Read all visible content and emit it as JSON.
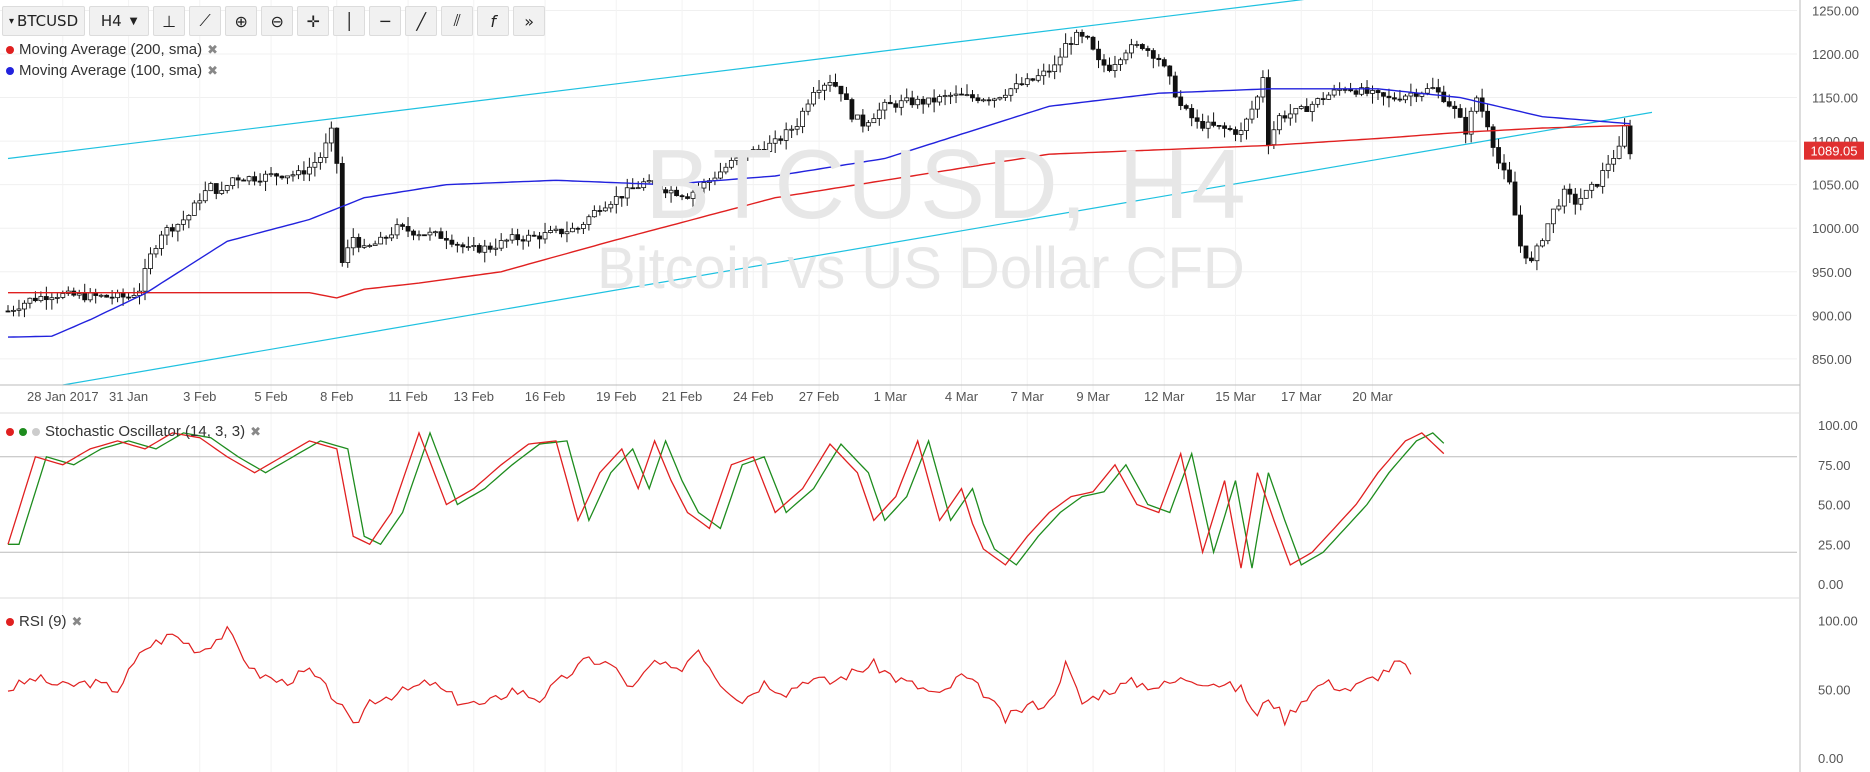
{
  "toolbar": {
    "symbol": "BTCUSD",
    "interval": "H4",
    "icons": [
      "bar-style-icon",
      "indicators-icon",
      "zoom-in-icon",
      "zoom-out-icon",
      "crosshair-icon",
      "vertical-line-icon",
      "horizontal-line-icon",
      "trend-line-icon",
      "pitchfork-icon",
      "function-icon",
      "more-icon"
    ]
  },
  "watermark": {
    "title": "BTCUSD, H4",
    "subtitle": "Bitcoin vs US Dollar CFD"
  },
  "legend": {
    "ma200": {
      "label": "Moving Average (200, sma)",
      "color": "#e02020"
    },
    "ma100": {
      "label": "Moving Average (100, sma)",
      "color": "#2222dd"
    },
    "stoch": {
      "label": "Stochastic Oscillator (14, 3, 3)",
      "k_color": "#e02020",
      "d_color": "#1e8c1e",
      "extra_dot": "#cccccc"
    },
    "rsi": {
      "label": "RSI (9)",
      "color": "#e02020"
    }
  },
  "chart_data": {
    "type": "candlestick",
    "title": "BTCUSD, H4",
    "subtitle": "Bitcoin vs US Dollar CFD",
    "last_price": "1089.05",
    "x_tick_labels": [
      "28 Jan 2017",
      "31 Jan",
      "3 Feb",
      "5 Feb",
      "8 Feb",
      "11 Feb",
      "13 Feb",
      "16 Feb",
      "19 Feb",
      "21 Feb",
      "24 Feb",
      "27 Feb",
      "1 Mar",
      "4 Mar",
      "7 Mar",
      "9 Mar",
      "12 Mar",
      "15 Mar",
      "17 Mar",
      "20 Mar"
    ],
    "price_axis": {
      "ticks": [
        "1250.00",
        "1200.00",
        "1150.00",
        "1100.00",
        "1050.00",
        "1000.00",
        "950.00",
        "900.00",
        "850.00"
      ],
      "ylim": [
        820,
        1262
      ]
    },
    "price_path": [
      [
        0,
        905
      ],
      [
        4,
        918
      ],
      [
        8,
        924
      ],
      [
        14,
        922
      ],
      [
        20,
        921
      ],
      [
        22,
        921
      ],
      [
        24,
        930
      ],
      [
        26,
        968
      ],
      [
        28,
        995
      ],
      [
        31,
        1005
      ],
      [
        33,
        1015
      ],
      [
        35,
        1035
      ],
      [
        37,
        1048
      ],
      [
        39,
        1040
      ],
      [
        41,
        1058
      ],
      [
        45,
        1058
      ],
      [
        50,
        1062
      ],
      [
        53,
        1062
      ],
      [
        55,
        1070
      ],
      [
        57,
        1082
      ],
      [
        58,
        1095
      ],
      [
        59,
        1110
      ],
      [
        60,
        1075
      ],
      [
        61,
        960
      ],
      [
        63,
        990
      ],
      [
        65,
        975
      ],
      [
        68,
        985
      ],
      [
        71,
        1000
      ],
      [
        75,
        995
      ],
      [
        80,
        990
      ],
      [
        84,
        975
      ],
      [
        88,
        978
      ],
      [
        92,
        988
      ],
      [
        96,
        990
      ],
      [
        100,
        995
      ],
      [
        104,
        1000
      ],
      [
        108,
        1025
      ],
      [
        112,
        1038
      ],
      [
        116,
        1052
      ],
      [
        120,
        1045
      ],
      [
        124,
        1038
      ],
      [
        128,
        1055
      ],
      [
        132,
        1075
      ],
      [
        136,
        1088
      ],
      [
        140,
        1098
      ],
      [
        144,
        1120
      ],
      [
        147,
        1160
      ],
      [
        150,
        1170
      ],
      [
        152,
        1158
      ],
      [
        154,
        1130
      ],
      [
        156,
        1120
      ],
      [
        160,
        1140
      ],
      [
        164,
        1145
      ],
      [
        168,
        1145
      ],
      [
        172,
        1152
      ],
      [
        176,
        1150
      ],
      [
        180,
        1150
      ],
      [
        183,
        1160
      ],
      [
        187,
        1170
      ],
      [
        191,
        1185
      ],
      [
        193,
        1210
      ],
      [
        195,
        1220
      ],
      [
        197,
        1215
      ],
      [
        199,
        1190
      ],
      [
        201,
        1185
      ],
      [
        204,
        1205
      ],
      [
        207,
        1210
      ],
      [
        210,
        1195
      ],
      [
        212,
        1170
      ],
      [
        214,
        1140
      ],
      [
        217,
        1120
      ],
      [
        221,
        1115
      ],
      [
        225,
        1110
      ],
      [
        228,
        1150
      ],
      [
        229,
        1175
      ],
      [
        230,
        1100
      ],
      [
        232,
        1128
      ],
      [
        236,
        1135
      ],
      [
        240,
        1150
      ],
      [
        244,
        1162
      ],
      [
        248,
        1155
      ],
      [
        252,
        1148
      ],
      [
        256,
        1155
      ],
      [
        260,
        1160
      ],
      [
        262,
        1150
      ],
      [
        264,
        1135
      ],
      [
        266,
        1112
      ],
      [
        268,
        1150
      ],
      [
        270,
        1120
      ],
      [
        272,
        1075
      ],
      [
        274,
        1050
      ],
      [
        276,
        980
      ],
      [
        278,
        960
      ],
      [
        280,
        990
      ],
      [
        282,
        1020
      ],
      [
        284,
        1040
      ],
      [
        286,
        1030
      ],
      [
        288,
        1040
      ],
      [
        290,
        1052
      ],
      [
        292,
        1075
      ],
      [
        294,
        1090
      ],
      [
        295,
        1115
      ],
      [
        296,
        1089
      ]
    ],
    "x_units": "4-hour bars (index)",
    "series": [
      {
        "name": "Moving Average (200, sma)",
        "values": [
          [
            0,
            926
          ],
          [
            30,
            926
          ],
          [
            55,
            926
          ],
          [
            60,
            920
          ],
          [
            65,
            930
          ],
          [
            75,
            937
          ],
          [
            90,
            950
          ],
          [
            110,
            985
          ],
          [
            140,
            1035
          ],
          [
            170,
            1065
          ],
          [
            190,
            1085
          ],
          [
            210,
            1090
          ],
          [
            230,
            1095
          ],
          [
            250,
            1103
          ],
          [
            265,
            1110
          ],
          [
            280,
            1115
          ],
          [
            296,
            1118
          ]
        ]
      },
      {
        "name": "Moving Average (100, sma)",
        "values": [
          [
            0,
            875
          ],
          [
            8,
            876
          ],
          [
            15,
            895
          ],
          [
            25,
            925
          ],
          [
            40,
            985
          ],
          [
            55,
            1010
          ],
          [
            65,
            1035
          ],
          [
            80,
            1050
          ],
          [
            100,
            1055
          ],
          [
            120,
            1050
          ],
          [
            140,
            1060
          ],
          [
            160,
            1080
          ],
          [
            170,
            1100
          ],
          [
            190,
            1140
          ],
          [
            210,
            1155
          ],
          [
            230,
            1160
          ],
          [
            250,
            1160
          ],
          [
            265,
            1150
          ],
          [
            280,
            1128
          ],
          [
            296,
            1120
          ]
        ]
      }
    ],
    "channel_lines": [
      {
        "name": "upper",
        "values": [
          [
            0,
            1080
          ],
          [
            246,
            1270
          ]
        ]
      },
      {
        "name": "lower",
        "values": [
          [
            10,
            820
          ],
          [
            300,
            1133
          ]
        ]
      }
    ],
    "stochastic": {
      "name": "Stochastic Oscillator (14, 3, 3)",
      "ticks": [
        "100.00",
        "75.00",
        "50.00",
        "25.00",
        "0.00"
      ],
      "levels": [
        80,
        20
      ],
      "k_path": [
        [
          0,
          25
        ],
        [
          5,
          80
        ],
        [
          10,
          75
        ],
        [
          15,
          85
        ],
        [
          20,
          90
        ],
        [
          25,
          85
        ],
        [
          30,
          95
        ],
        [
          35,
          92
        ],
        [
          40,
          80
        ],
        [
          45,
          70
        ],
        [
          50,
          80
        ],
        [
          55,
          90
        ],
        [
          60,
          85
        ],
        [
          63,
          30
        ],
        [
          66,
          25
        ],
        [
          70,
          45
        ],
        [
          75,
          95
        ],
        [
          80,
          50
        ],
        [
          85,
          60
        ],
        [
          90,
          75
        ],
        [
          95,
          88
        ],
        [
          100,
          90
        ],
        [
          104,
          40
        ],
        [
          108,
          70
        ],
        [
          112,
          85
        ],
        [
          115,
          60
        ],
        [
          118,
          90
        ],
        [
          121,
          65
        ],
        [
          124,
          45
        ],
        [
          128,
          35
        ],
        [
          132,
          75
        ],
        [
          136,
          80
        ],
        [
          140,
          45
        ],
        [
          145,
          60
        ],
        [
          150,
          88
        ],
        [
          155,
          70
        ],
        [
          158,
          40
        ],
        [
          162,
          55
        ],
        [
          166,
          90
        ],
        [
          170,
          40
        ],
        [
          174,
          60
        ],
        [
          176,
          38
        ],
        [
          178,
          22
        ],
        [
          182,
          12
        ],
        [
          186,
          30
        ],
        [
          190,
          45
        ],
        [
          194,
          55
        ],
        [
          198,
          58
        ],
        [
          202,
          75
        ],
        [
          206,
          50
        ],
        [
          210,
          45
        ],
        [
          214,
          82
        ],
        [
          218,
          20
        ],
        [
          222,
          65
        ],
        [
          225,
          10
        ],
        [
          228,
          70
        ],
        [
          231,
          40
        ],
        [
          234,
          12
        ],
        [
          238,
          20
        ],
        [
          242,
          35
        ],
        [
          246,
          50
        ],
        [
          250,
          70
        ],
        [
          255,
          90
        ],
        [
          258,
          95
        ],
        [
          262,
          82
        ]
      ],
      "d_lag_bars": 2
    },
    "rsi": {
      "name": "RSI (9)",
      "ticks": [
        "100.00",
        "50.00",
        "0.00"
      ],
      "values": [
        [
          0,
          50
        ],
        [
          5,
          58
        ],
        [
          10,
          52
        ],
        [
          15,
          55
        ],
        [
          20,
          50
        ],
        [
          25,
          80
        ],
        [
          30,
          90
        ],
        [
          35,
          78
        ],
        [
          40,
          92
        ],
        [
          45,
          62
        ],
        [
          50,
          55
        ],
        [
          55,
          63
        ],
        [
          60,
          42
        ],
        [
          63,
          22
        ],
        [
          66,
          42
        ],
        [
          72,
          48
        ],
        [
          77,
          55
        ],
        [
          82,
          42
        ],
        [
          87,
          38
        ],
        [
          92,
          50
        ],
        [
          97,
          43
        ],
        [
          102,
          60
        ],
        [
          106,
          72
        ],
        [
          110,
          68
        ],
        [
          114,
          50
        ],
        [
          118,
          70
        ],
        [
          122,
          62
        ],
        [
          126,
          80
        ],
        [
          130,
          55
        ],
        [
          134,
          42
        ],
        [
          138,
          55
        ],
        [
          142,
          48
        ],
        [
          146,
          58
        ],
        [
          150,
          55
        ],
        [
          154,
          62
        ],
        [
          158,
          68
        ],
        [
          162,
          58
        ],
        [
          166,
          52
        ],
        [
          170,
          45
        ],
        [
          174,
          60
        ],
        [
          178,
          48
        ],
        [
          182,
          28
        ],
        [
          186,
          38
        ],
        [
          190,
          40
        ],
        [
          193,
          68
        ],
        [
          196,
          40
        ],
        [
          200,
          48
        ],
        [
          205,
          55
        ],
        [
          210,
          52
        ],
        [
          215,
          58
        ],
        [
          220,
          55
        ],
        [
          225,
          50
        ],
        [
          228,
          30
        ],
        [
          230,
          45
        ],
        [
          233,
          28
        ],
        [
          236,
          42
        ],
        [
          240,
          55
        ],
        [
          245,
          50
        ],
        [
          250,
          60
        ],
        [
          254,
          70
        ],
        [
          256,
          60
        ]
      ]
    }
  }
}
